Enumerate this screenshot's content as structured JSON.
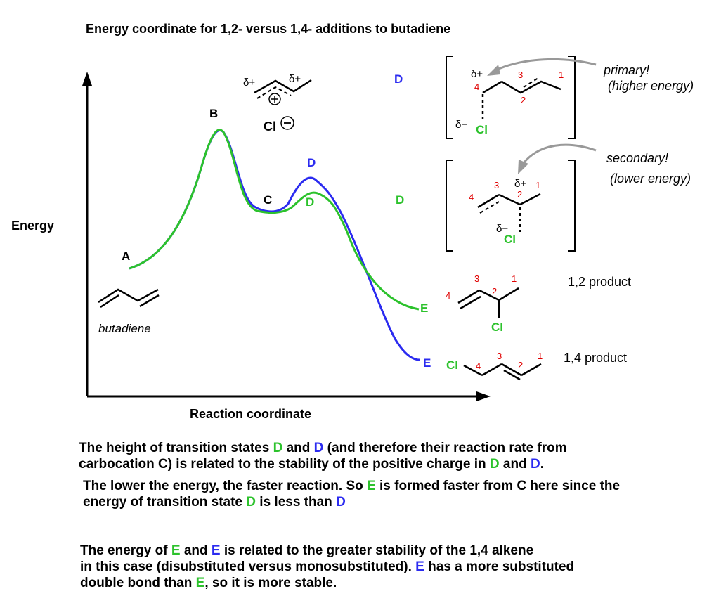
{
  "title": "Energy coordinate for 1,2- versus 1,4- additions to butadiene",
  "axes": {
    "y_label": "Energy",
    "x_label": "Reaction coordinate"
  },
  "points": {
    "A": "A",
    "B": "B",
    "C": "C",
    "D": "D",
    "E": "E"
  },
  "molecules": {
    "butadiene_label": "butadiene",
    "delta_plus": "δ+",
    "delta_minus": "δ−",
    "plus_sign": "+",
    "minus_sign": "−",
    "cl": "Cl",
    "n1": "1",
    "n2": "2",
    "n3": "3",
    "n4": "4"
  },
  "annotations": {
    "primary": "primary!",
    "primary_sub": "(higher energy)",
    "secondary": "secondary!",
    "secondary_sub": "(lower energy)",
    "product12": "1,2 product",
    "product14": "1,4 product"
  },
  "colors": {
    "green": "#2cc22c",
    "blue": "#2b2bf0",
    "red": "#e00000",
    "gray": "#999999"
  },
  "paragraphs": {
    "p1_line1_a": "The height of transition states ",
    "p1_line1_b": " and ",
    "p1_line1_c": " (and therefore their reaction rate from",
    "p1_line2_a": "carbocation C) is related to the stability of the positive charge in ",
    "p1_line2_b": " and ",
    "p1_line2_c": ".",
    "p2_line1_a": "The lower the energy, the faster reaction. So ",
    "p2_line1_b": " is formed faster from C here since the",
    "p2_line2_a": "energy of transition state ",
    "p2_line2_b": " is less than ",
    "p3_line1_a": "The energy of ",
    "p3_line1_b": " and ",
    "p3_line1_c": " is related to the greater stability of the 1,4 alkene",
    "p3_line2_a": "in this case (disubstituted versus monosubstituted). ",
    "p3_line2_b": " has a more substituted",
    "p3_line3_a": "double bond than ",
    "p3_line3_b": ", so it is more stable."
  }
}
